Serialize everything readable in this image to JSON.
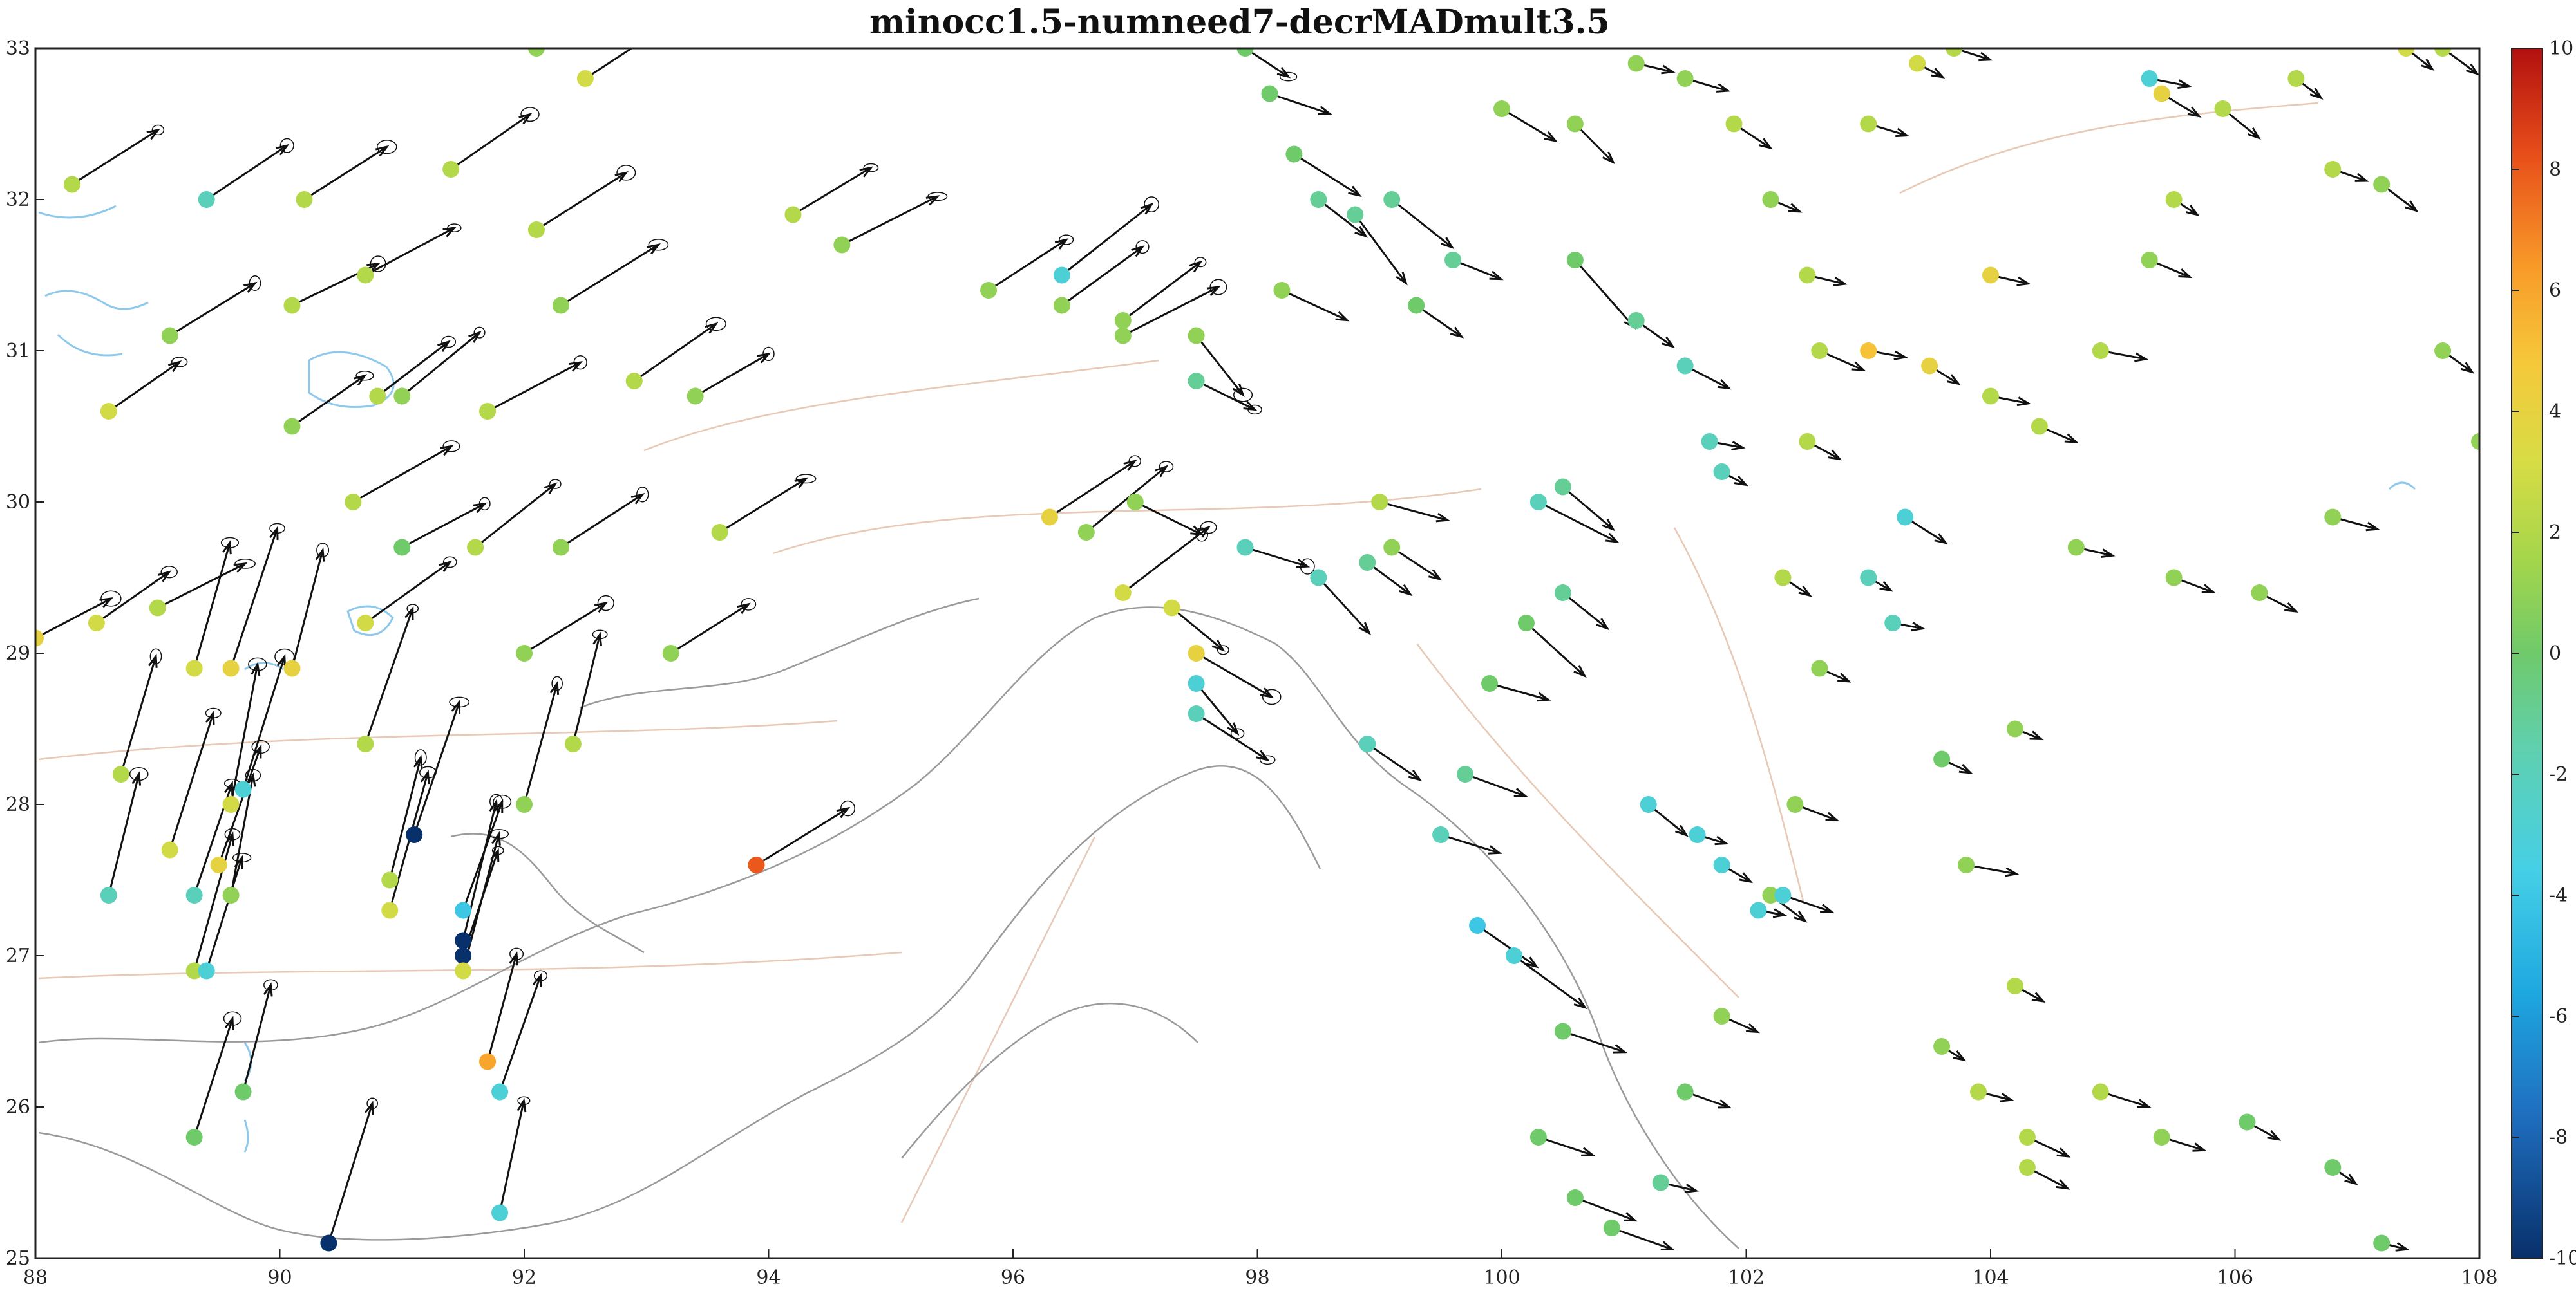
{
  "title": "minocc1.5-numneed7-decrMADmult3.5",
  "map": {
    "lon_range": [
      88,
      108
    ],
    "lat_range": [
      25,
      33
    ],
    "x_ticks": [
      "88",
      "90",
      "92",
      "94",
      "96",
      "98",
      "100",
      "102",
      "104",
      "106",
      "108"
    ],
    "y_ticks": [
      "25",
      "26",
      "27",
      "28",
      "29",
      "30",
      "31",
      "32",
      "33"
    ],
    "basemap": "topographic contours (gray), rivers/lakes (light blue), faults (pale tan)"
  },
  "colorbar": {
    "range": [
      -10,
      10
    ],
    "tick_labels": [
      "10",
      "8",
      "6",
      "4",
      "2",
      "0",
      "-2",
      "-4",
      "-6",
      "-8",
      "-10"
    ],
    "colormap": "blue-cyan-green-yellow-orange-red (parula-like diverging)"
  },
  "colors": {
    "arrow": "#111111",
    "contour": "#9a9a9a",
    "water": "#8ec9ec",
    "fault": "#e7c9b5"
  },
  "chart_data": {
    "type": "scatter",
    "title": "minocc1.5-numneed7-decrMADmult3.5",
    "xlim": [
      88,
      108
    ],
    "ylim": [
      25,
      33
    ],
    "color_range": [
      -10,
      10
    ],
    "stations": [
      [
        88.3,
        32.1,
        2
      ],
      [
        89.1,
        31.1,
        1
      ],
      [
        89.4,
        32.0,
        -2
      ],
      [
        88.6,
        30.6,
        3
      ],
      [
        88.5,
        29.2,
        3
      ],
      [
        88.0,
        29.1,
        4
      ],
      [
        89.0,
        29.3,
        2
      ],
      [
        89.3,
        28.9,
        3
      ],
      [
        89.6,
        28.9,
        4
      ],
      [
        90.1,
        28.9,
        4
      ],
      [
        88.7,
        28.2,
        2
      ],
      [
        89.1,
        27.7,
        3
      ],
      [
        88.6,
        27.4,
        -2
      ],
      [
        89.3,
        27.4,
        -2
      ],
      [
        89.5,
        27.6,
        4
      ],
      [
        89.6,
        27.4,
        1
      ],
      [
        89.3,
        26.9,
        2
      ],
      [
        89.4,
        26.9,
        -3
      ],
      [
        89.7,
        28.1,
        -3
      ],
      [
        89.6,
        28.0,
        3
      ],
      [
        89.7,
        26.1,
        0
      ],
      [
        89.3,
        25.8,
        0
      ],
      [
        90.4,
        25.1,
        -10
      ],
      [
        90.9,
        27.5,
        2
      ],
      [
        90.9,
        27.3,
        3
      ],
      [
        91.1,
        27.8,
        -10
      ],
      [
        91.5,
        27.3,
        -4
      ],
      [
        91.5,
        27.1,
        -10
      ],
      [
        91.5,
        27.0,
        -10
      ],
      [
        91.5,
        26.9,
        3
      ],
      [
        91.7,
        26.3,
        6
      ],
      [
        91.8,
        26.1,
        -3
      ],
      [
        91.8,
        25.3,
        -3
      ],
      [
        92.4,
        28.4,
        2
      ],
      [
        92.0,
        28.0,
        1
      ],
      [
        93.9,
        27.6,
        8
      ],
      [
        90.7,
        29.2,
        3
      ],
      [
        90.7,
        28.4,
        2
      ],
      [
        91.0,
        29.7,
        0
      ],
      [
        92.0,
        29.0,
        1
      ],
      [
        92.3,
        29.7,
        1
      ],
      [
        92.9,
        30.8,
        2
      ],
      [
        92.3,
        31.3,
        1
      ],
      [
        92.1,
        31.8,
        2
      ],
      [
        92.5,
        32.8,
        3
      ],
      [
        92.1,
        33.0,
        1
      ],
      [
        91.4,
        32.2,
        2
      ],
      [
        90.2,
        32.0,
        2
      ],
      [
        90.1,
        31.3,
        2
      ],
      [
        90.1,
        30.5,
        1
      ],
      [
        90.7,
        31.5,
        2
      ],
      [
        91.0,
        30.7,
        1
      ],
      [
        91.7,
        30.6,
        2
      ],
      [
        90.6,
        30.0,
        2
      ],
      [
        90.8,
        30.7,
        2
      ],
      [
        91.6,
        29.7,
        2
      ],
      [
        93.2,
        29.0,
        1
      ],
      [
        93.4,
        30.7,
        1
      ],
      [
        93.6,
        29.8,
        2
      ],
      [
        94.2,
        31.9,
        2
      ],
      [
        94.6,
        31.7,
        1
      ],
      [
        95.8,
        31.4,
        1
      ],
      [
        96.4,
        31.3,
        1
      ],
      [
        96.4,
        31.5,
        -3
      ],
      [
        96.9,
        31.2,
        1
      ],
      [
        96.9,
        31.1,
        1
      ],
      [
        97.5,
        30.8,
        -1
      ],
      [
        97.5,
        31.1,
        1
      ],
      [
        97.0,
        30.0,
        1
      ],
      [
        96.6,
        29.8,
        1
      ],
      [
        96.3,
        29.9,
        4
      ],
      [
        96.9,
        29.4,
        3
      ],
      [
        97.3,
        29.3,
        3
      ],
      [
        97.5,
        29.0,
        4
      ],
      [
        97.5,
        28.6,
        -2
      ],
      [
        97.5,
        28.8,
        -3
      ],
      [
        97.9,
        29.7,
        -2
      ],
      [
        98.5,
        29.5,
        -2
      ],
      [
        98.9,
        29.6,
        -1
      ],
      [
        99.1,
        29.7,
        1
      ],
      [
        98.9,
        28.4,
        -2
      ],
      [
        98.2,
        31.4,
        1
      ],
      [
        98.5,
        32.0,
        -1
      ],
      [
        99.1,
        32.0,
        -1
      ],
      [
        99.3,
        31.3,
        0
      ],
      [
        99.0,
        30.0,
        2
      ],
      [
        97.9,
        33.0,
        0
      ],
      [
        98.1,
        32.7,
        0
      ],
      [
        98.3,
        32.3,
        0
      ],
      [
        98.8,
        31.9,
        -1
      ],
      [
        99.6,
        31.6,
        -1
      ],
      [
        100.6,
        31.6,
        0
      ],
      [
        101.1,
        31.2,
        -1
      ],
      [
        101.5,
        30.9,
        -2
      ],
      [
        101.7,
        30.4,
        -2
      ],
      [
        101.8,
        30.2,
        -2
      ],
      [
        100.5,
        30.1,
        -1
      ],
      [
        100.3,
        30.0,
        -2
      ],
      [
        100.5,
        29.4,
        -1
      ],
      [
        100.2,
        29.2,
        0
      ],
      [
        99.9,
        28.8,
        0
      ],
      [
        99.7,
        28.2,
        -1
      ],
      [
        99.5,
        27.8,
        -2
      ],
      [
        99.8,
        27.2,
        -4
      ],
      [
        100.1,
        27.0,
        -3
      ],
      [
        100.5,
        26.5,
        0
      ],
      [
        100.3,
        25.8,
        0
      ],
      [
        100.6,
        25.4,
        0
      ],
      [
        100.9,
        25.2,
        0
      ],
      [
        101.3,
        25.5,
        -1
      ],
      [
        101.5,
        26.1,
        0
      ],
      [
        101.8,
        26.6,
        1
      ],
      [
        102.2,
        27.4,
        1
      ],
      [
        102.4,
        28.0,
        1
      ],
      [
        102.6,
        28.9,
        1
      ],
      [
        102.3,
        29.5,
        2
      ],
      [
        102.5,
        30.4,
        2
      ],
      [
        102.6,
        31.0,
        2
      ],
      [
        102.5,
        31.5,
        2
      ],
      [
        102.2,
        32.0,
        1
      ],
      [
        101.9,
        32.5,
        2
      ],
      [
        101.5,
        32.8,
        1
      ],
      [
        101.1,
        32.9,
        1
      ],
      [
        100.6,
        32.5,
        1
      ],
      [
        100.0,
        32.6,
        1
      ],
      [
        103.0,
        31.0,
        5
      ],
      [
        103.5,
        30.9,
        4
      ],
      [
        104.0,
        30.7,
        2
      ],
      [
        104.4,
        30.5,
        2
      ],
      [
        104.9,
        31.0,
        2
      ],
      [
        105.3,
        31.6,
        1
      ],
      [
        105.5,
        32.0,
        2
      ],
      [
        105.9,
        32.6,
        2
      ],
      [
        106.5,
        32.8,
        2
      ],
      [
        106.8,
        32.2,
        2
      ],
      [
        107.2,
        32.1,
        1
      ],
      [
        107.7,
        31.0,
        1
      ],
      [
        108.0,
        30.4,
        1
      ],
      [
        106.8,
        29.9,
        1
      ],
      [
        106.2,
        29.4,
        1
      ],
      [
        105.5,
        29.5,
        1
      ],
      [
        104.7,
        29.7,
        1
      ],
      [
        104.2,
        28.5,
        1
      ],
      [
        103.6,
        28.3,
        0
      ],
      [
        103.8,
        27.6,
        1
      ],
      [
        104.2,
        26.8,
        2
      ],
      [
        104.9,
        26.1,
        2
      ],
      [
        105.4,
        25.8,
        1
      ],
      [
        106.1,
        25.9,
        0
      ],
      [
        106.8,
        25.6,
        0
      ],
      [
        107.2,
        25.1,
        0
      ],
      [
        103.3,
        29.9,
        -3
      ],
      [
        103.0,
        29.5,
        -2
      ],
      [
        103.2,
        29.2,
        -2
      ],
      [
        102.3,
        27.4,
        -3
      ],
      [
        102.1,
        27.3,
        -3
      ],
      [
        103.0,
        32.5,
        2
      ],
      [
        103.4,
        32.9,
        3
      ],
      [
        103.7,
        33.0,
        2
      ],
      [
        104.0,
        31.5,
        4
      ],
      [
        105.3,
        32.8,
        -3
      ],
      [
        105.4,
        32.7,
        4
      ],
      [
        107.4,
        33.0,
        3
      ],
      [
        107.7,
        33.0,
        2
      ],
      [
        103.6,
        26.4,
        1
      ],
      [
        103.9,
        26.1,
        2
      ],
      [
        104.3,
        25.8,
        2
      ],
      [
        104.3,
        25.6,
        2
      ],
      [
        101.2,
        28.0,
        -3
      ],
      [
        101.6,
        27.8,
        -3
      ],
      [
        101.8,
        27.6,
        -3
      ]
    ]
  }
}
